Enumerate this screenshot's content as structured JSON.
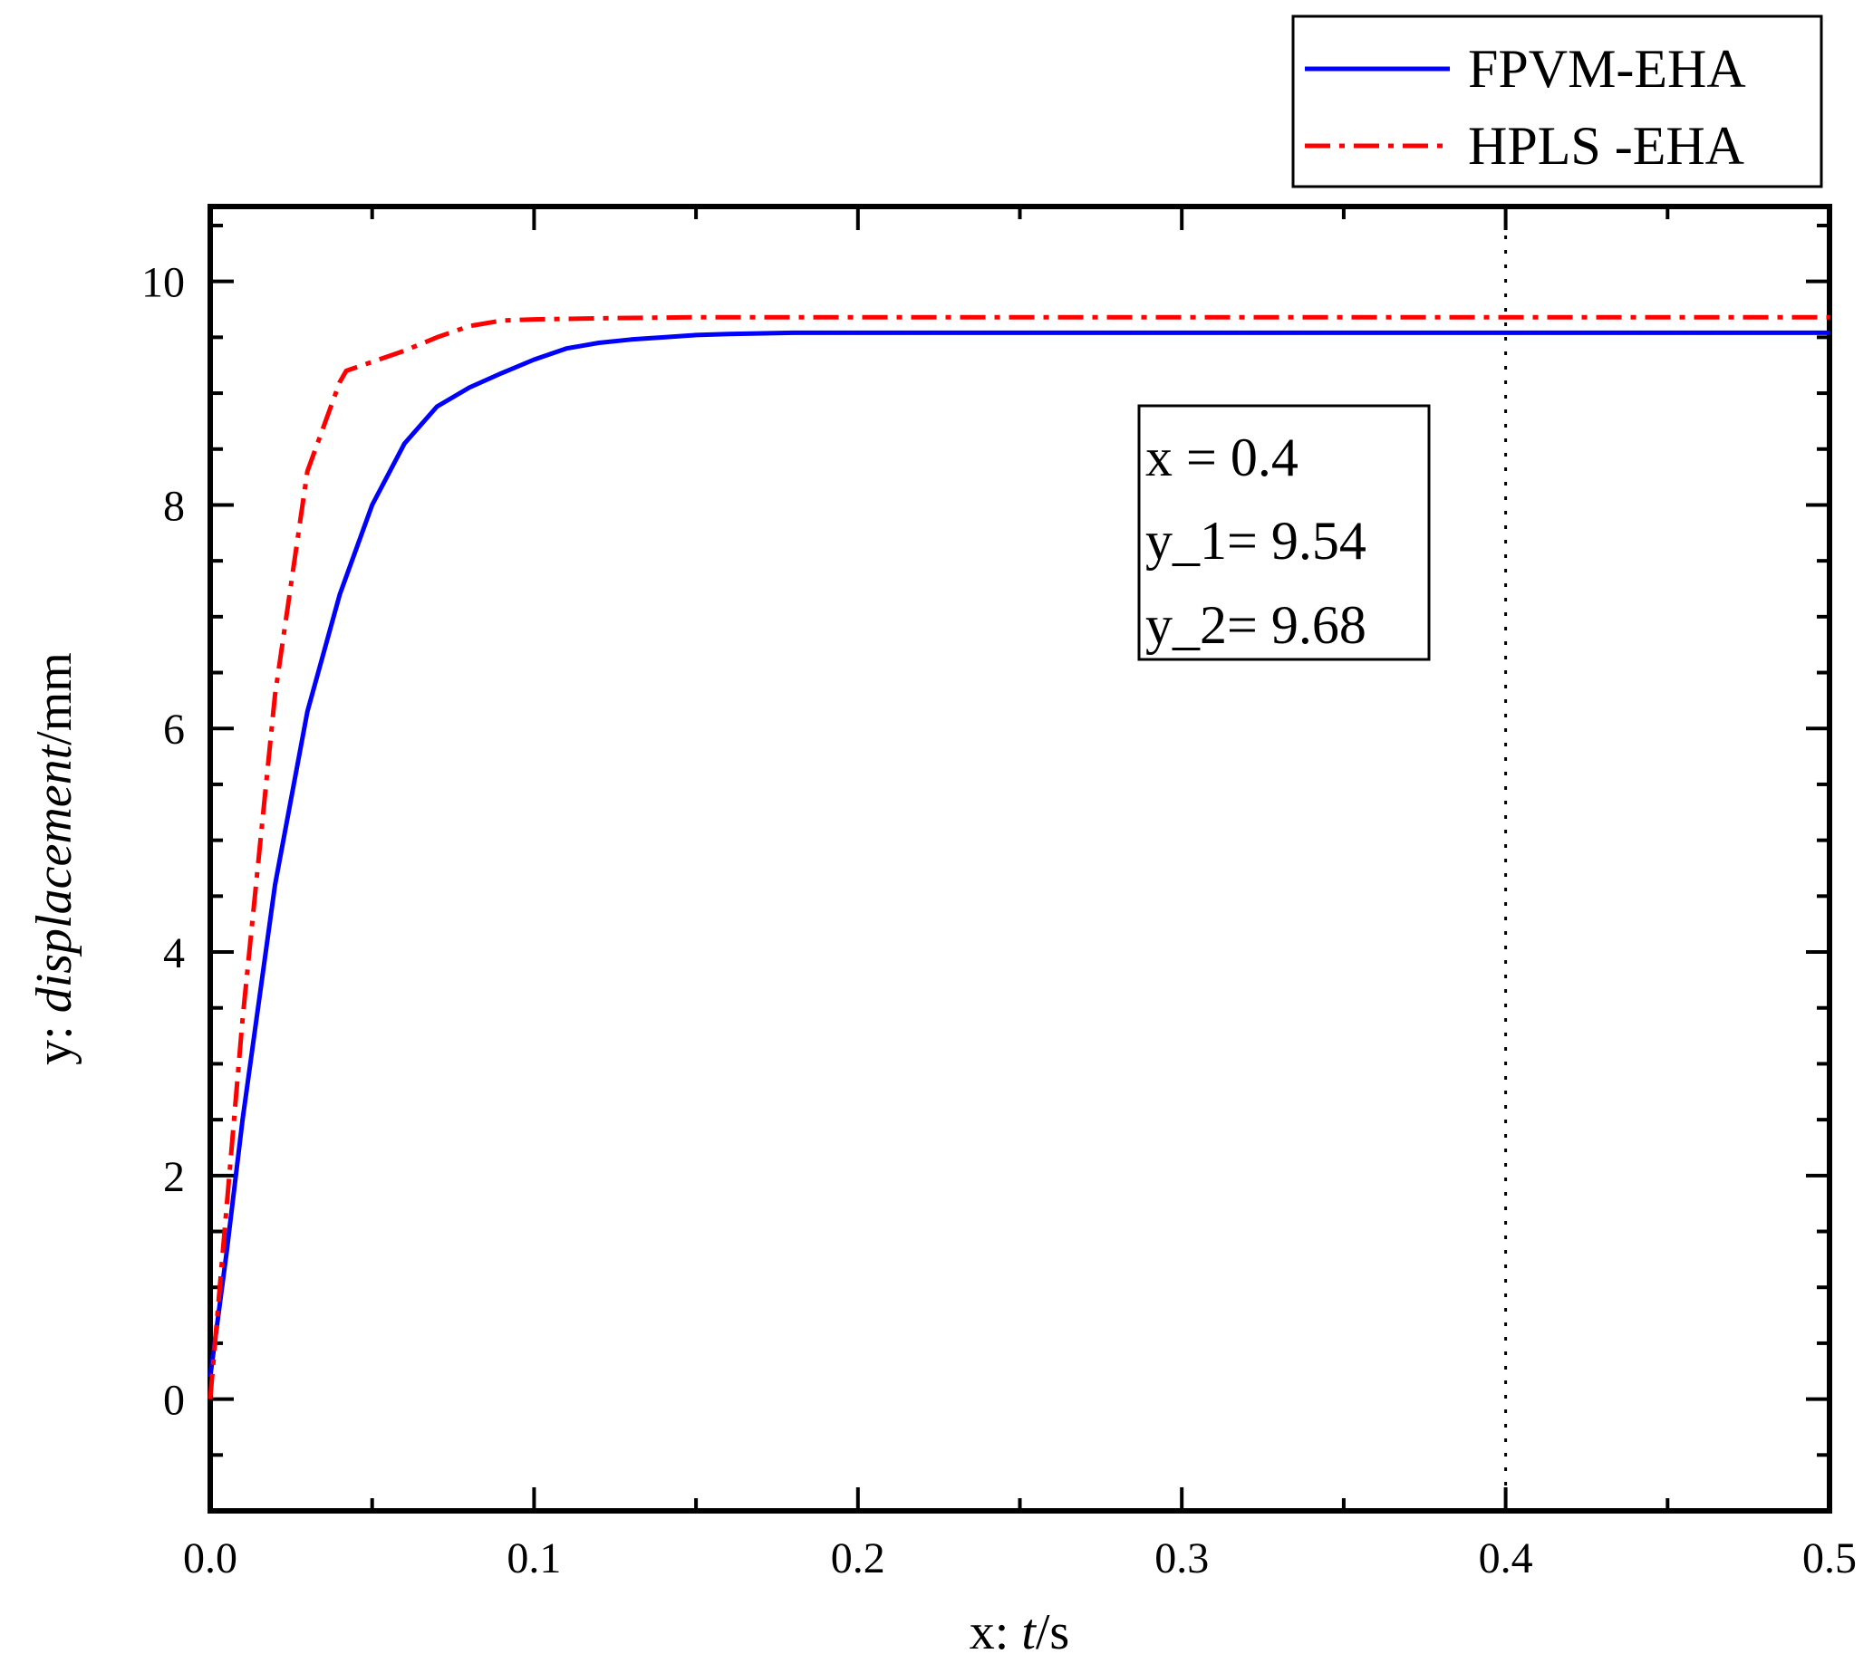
{
  "chart_data": {
    "type": "line",
    "xlabel_prefix": "x: ",
    "xlabel_var": "t",
    "xlabel_unit": "/s",
    "ylabel_prefix": "y: ",
    "ylabel_var": "displacement",
    "ylabel_unit": "/mm",
    "xlim": [
      0,
      0.5
    ],
    "ylim": [
      -1,
      10.67
    ],
    "xticks": [
      0.0,
      0.1,
      0.2,
      0.3,
      0.4,
      0.5
    ],
    "xtick_labels": [
      "0.0",
      "0.1",
      "0.2",
      "0.3",
      "0.4",
      "0.5"
    ],
    "yticks": [
      0,
      2,
      4,
      6,
      8,
      10
    ],
    "ytick_labels": [
      "0",
      "2",
      "4",
      "6",
      "8",
      "10"
    ],
    "grid": false,
    "legend_position": "top-right, outside plot",
    "series": [
      {
        "name": "FPVM-EHA",
        "color": "#0000ff",
        "style": "solid",
        "x": [
          0,
          0.005,
          0.01,
          0.02,
          0.03,
          0.04,
          0.05,
          0.06,
          0.07,
          0.08,
          0.09,
          0.1,
          0.11,
          0.12,
          0.13,
          0.14,
          0.15,
          0.16,
          0.18,
          0.2,
          0.25,
          0.3,
          0.35,
          0.4,
          0.45,
          0.5
        ],
        "y": [
          0.2,
          1.3,
          2.5,
          4.6,
          6.15,
          7.2,
          8.0,
          8.55,
          8.88,
          9.05,
          9.18,
          9.3,
          9.4,
          9.45,
          9.48,
          9.5,
          9.52,
          9.53,
          9.54,
          9.54,
          9.54,
          9.54,
          9.54,
          9.54,
          9.54,
          9.54
        ]
      },
      {
        "name": "HPLS -EHA",
        "color": "#ff0000",
        "style": "dash-dot",
        "x": [
          0,
          0.005,
          0.01,
          0.02,
          0.03,
          0.04,
          0.042,
          0.05,
          0.06,
          0.07,
          0.08,
          0.09,
          0.1,
          0.12,
          0.15,
          0.2,
          0.3,
          0.4,
          0.5
        ],
        "y": [
          0.0,
          1.7,
          3.4,
          6.3,
          8.3,
          9.1,
          9.2,
          9.28,
          9.38,
          9.5,
          9.6,
          9.65,
          9.66,
          9.67,
          9.68,
          9.68,
          9.68,
          9.68,
          9.68
        ]
      }
    ],
    "vline_x": 0.4,
    "annotation": {
      "line1": "x  = 0.4",
      "line2": "y_1= 9.54",
      "line3": "y_2= 9.68"
    }
  }
}
